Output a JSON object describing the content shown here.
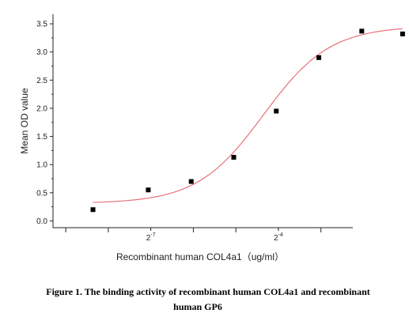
{
  "chart_data": {
    "type": "scatter",
    "title": "",
    "xlabel": "Recombinant human  COL4a1（ug/ml）",
    "ylabel": "Mean OD value",
    "x_scale": "log2",
    "xlim": [
      -9.3,
      -2.25
    ],
    "ylim": [
      -0.12,
      3.67
    ],
    "x_ticks": [
      {
        "value": -7,
        "base": "2",
        "exponent": "-7"
      },
      {
        "value": -4,
        "base": "2",
        "exponent": "-4"
      }
    ],
    "y_ticks": [
      "0.0",
      "0.5",
      "1.0",
      "1.5",
      "2.0",
      "2.5",
      "3.0",
      "3.5"
    ],
    "series": [
      {
        "kind": "points",
        "marker": "square",
        "color": "#000000",
        "x": [
          -8.36,
          -7.06,
          -6.05,
          -5.05,
          -4.05,
          -3.05,
          -2.04,
          -1.08
        ],
        "y": [
          0.2,
          0.55,
          0.7,
          1.13,
          1.95,
          2.9,
          3.37,
          3.32
        ]
      },
      {
        "kind": "fit-curve",
        "color": "#e8707a",
        "bottom": 0.31,
        "top": 3.46,
        "x50": -4.35,
        "slope": 1.28,
        "x_range": [
          -8.36,
          -1.08
        ]
      }
    ]
  },
  "caption": {
    "line1": "Figure 1. The binding activity of recombinant human COL4a1 and recombinant",
    "line2": "human GP6"
  }
}
